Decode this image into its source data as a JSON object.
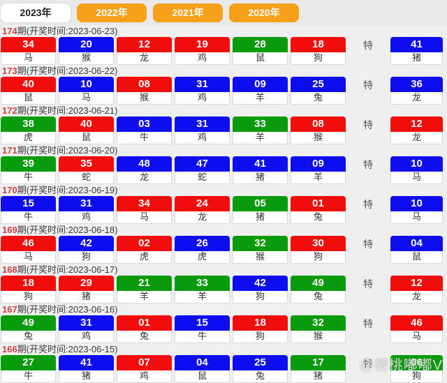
{
  "page": {
    "background": "#efefef"
  },
  "colors": {
    "red": "#f20d0d",
    "blue": "#0d0df0",
    "green": "#0a9b0c",
    "tab_orange": "#f7a11a",
    "period_red": "#d24040"
  },
  "tabs": [
    {
      "label": "2023年",
      "active": true
    },
    {
      "label": "2022年",
      "active": false
    },
    {
      "label": "2021年",
      "active": false
    },
    {
      "label": "2020年",
      "active": false
    }
  ],
  "special_label": "特",
  "draws": [
    {
      "period": "174",
      "suffix": "期(开奖时间:2023-06-23)",
      "balls": [
        {
          "num": "34",
          "color": "red",
          "zodiac": "马"
        },
        {
          "num": "20",
          "color": "blue",
          "zodiac": "猴"
        },
        {
          "num": "12",
          "color": "red",
          "zodiac": "龙"
        },
        {
          "num": "19",
          "color": "red",
          "zodiac": "鸡"
        },
        {
          "num": "28",
          "color": "green",
          "zodiac": "鼠"
        },
        {
          "num": "18",
          "color": "red",
          "zodiac": "狗"
        }
      ],
      "special": {
        "num": "41",
        "color": "blue",
        "zodiac": "猪"
      }
    },
    {
      "period": "173",
      "suffix": "期(开奖时间:2023-06-22)",
      "balls": [
        {
          "num": "40",
          "color": "red",
          "zodiac": "鼠"
        },
        {
          "num": "10",
          "color": "blue",
          "zodiac": "马"
        },
        {
          "num": "08",
          "color": "red",
          "zodiac": "猴"
        },
        {
          "num": "31",
          "color": "blue",
          "zodiac": "鸡"
        },
        {
          "num": "09",
          "color": "blue",
          "zodiac": "羊"
        },
        {
          "num": "25",
          "color": "blue",
          "zodiac": "兔"
        }
      ],
      "special": {
        "num": "36",
        "color": "blue",
        "zodiac": "龙"
      }
    },
    {
      "period": "172",
      "suffix": "期(开奖时间:2023-06-21)",
      "balls": [
        {
          "num": "38",
          "color": "green",
          "zodiac": "虎"
        },
        {
          "num": "40",
          "color": "red",
          "zodiac": "鼠"
        },
        {
          "num": "03",
          "color": "blue",
          "zodiac": "牛"
        },
        {
          "num": "31",
          "color": "blue",
          "zodiac": "鸡"
        },
        {
          "num": "33",
          "color": "green",
          "zodiac": "羊"
        },
        {
          "num": "08",
          "color": "red",
          "zodiac": "猴"
        }
      ],
      "special": {
        "num": "12",
        "color": "red",
        "zodiac": "龙"
      }
    },
    {
      "period": "171",
      "suffix": "期(开奖时间:2023-06-20)",
      "balls": [
        {
          "num": "39",
          "color": "green",
          "zodiac": "牛"
        },
        {
          "num": "35",
          "color": "red",
          "zodiac": "蛇"
        },
        {
          "num": "48",
          "color": "blue",
          "zodiac": "龙"
        },
        {
          "num": "47",
          "color": "blue",
          "zodiac": "蛇"
        },
        {
          "num": "41",
          "color": "blue",
          "zodiac": "猪"
        },
        {
          "num": "09",
          "color": "blue",
          "zodiac": "羊"
        }
      ],
      "special": {
        "num": "10",
        "color": "blue",
        "zodiac": "马"
      }
    },
    {
      "period": "170",
      "suffix": "期(开奖时间:2023-06-19)",
      "balls": [
        {
          "num": "15",
          "color": "blue",
          "zodiac": "牛"
        },
        {
          "num": "31",
          "color": "blue",
          "zodiac": "鸡"
        },
        {
          "num": "34",
          "color": "red",
          "zodiac": "马"
        },
        {
          "num": "24",
          "color": "red",
          "zodiac": "龙"
        },
        {
          "num": "05",
          "color": "green",
          "zodiac": "猪"
        },
        {
          "num": "01",
          "color": "red",
          "zodiac": "兔"
        }
      ],
      "special": {
        "num": "10",
        "color": "blue",
        "zodiac": "马"
      }
    },
    {
      "period": "169",
      "suffix": "期(开奖时间:2023-06-18)",
      "balls": [
        {
          "num": "46",
          "color": "red",
          "zodiac": "马"
        },
        {
          "num": "42",
          "color": "blue",
          "zodiac": "狗"
        },
        {
          "num": "02",
          "color": "red",
          "zodiac": "虎"
        },
        {
          "num": "26",
          "color": "blue",
          "zodiac": "虎"
        },
        {
          "num": "32",
          "color": "green",
          "zodiac": "猴"
        },
        {
          "num": "30",
          "color": "red",
          "zodiac": "狗"
        }
      ],
      "special": {
        "num": "04",
        "color": "blue",
        "zodiac": "鼠"
      }
    },
    {
      "period": "168",
      "suffix": "期(开奖时间:2023-06-17)",
      "balls": [
        {
          "num": "18",
          "color": "red",
          "zodiac": "狗"
        },
        {
          "num": "29",
          "color": "red",
          "zodiac": "猪"
        },
        {
          "num": "21",
          "color": "green",
          "zodiac": "羊"
        },
        {
          "num": "33",
          "color": "green",
          "zodiac": "羊"
        },
        {
          "num": "42",
          "color": "blue",
          "zodiac": "狗"
        },
        {
          "num": "49",
          "color": "green",
          "zodiac": "兔"
        }
      ],
      "special": {
        "num": "12",
        "color": "red",
        "zodiac": "龙"
      }
    },
    {
      "period": "167",
      "suffix": "期(开奖时间:2023-06-16)",
      "balls": [
        {
          "num": "49",
          "color": "green",
          "zodiac": "兔"
        },
        {
          "num": "31",
          "color": "blue",
          "zodiac": "鸡"
        },
        {
          "num": "01",
          "color": "red",
          "zodiac": "兔"
        },
        {
          "num": "15",
          "color": "blue",
          "zodiac": "牛"
        },
        {
          "num": "18",
          "color": "red",
          "zodiac": "狗"
        },
        {
          "num": "32",
          "color": "green",
          "zodiac": "猴"
        }
      ],
      "special": {
        "num": "46",
        "color": "red",
        "zodiac": "马"
      }
    },
    {
      "period": "166",
      "suffix": "期(开奖时间:2023-06-15)",
      "balls": [
        {
          "num": "27",
          "color": "green",
          "zodiac": "牛"
        },
        {
          "num": "41",
          "color": "blue",
          "zodiac": "猪"
        },
        {
          "num": "07",
          "color": "red",
          "zodiac": "鸡"
        },
        {
          "num": "04",
          "color": "blue",
          "zodiac": "鼠"
        },
        {
          "num": "25",
          "color": "blue",
          "zodiac": "兔"
        },
        {
          "num": "17",
          "color": "green",
          "zodiac": "猪"
        }
      ],
      "special": {
        "num": "06",
        "color": "green",
        "zodiac": "狗"
      }
    }
  ],
  "watermark": {
    "text": "@樱桃嘟嘟V",
    "icon": "weibo-watermark-icon"
  }
}
